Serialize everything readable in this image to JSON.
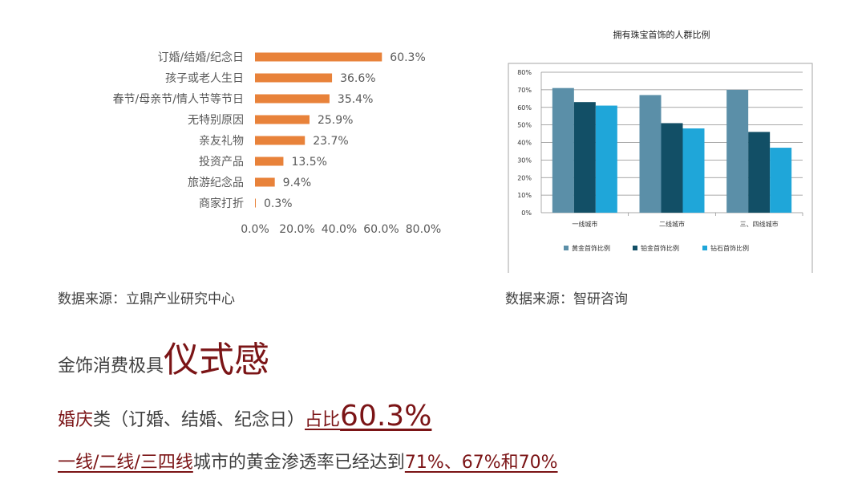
{
  "chart_data": [
    {
      "type": "bar",
      "orientation": "horizontal",
      "categories": [
        "订婚/结婚/纪念日",
        "孩子或老人生日",
        "春节/母亲节/情人节等节日",
        "无特别原因",
        "亲友礼物",
        "投资产品",
        "旅游纪念品",
        "商家打折"
      ],
      "values": [
        60.3,
        36.6,
        35.4,
        25.9,
        23.7,
        13.5,
        9.4,
        0.3
      ],
      "value_labels": [
        "60.3%",
        "36.6%",
        "35.4%",
        "25.9%",
        "23.7%",
        "13.5%",
        "9.4%",
        "0.3%"
      ],
      "xlim": [
        0,
        80
      ],
      "x_ticks": [
        "0.0%",
        "20.0%",
        "40.0%",
        "60.0%",
        "80.0%"
      ],
      "grid": false,
      "color": "#e8823a"
    },
    {
      "type": "bar",
      "title": "拥有珠宝首饰的人群比例",
      "categories": [
        "一线城市",
        "二线城市",
        "三、四线城市"
      ],
      "series": [
        {
          "name": "黄金首饰比例",
          "values": [
            71,
            67,
            70
          ],
          "color": "#5b8fa8"
        },
        {
          "name": "铂金首饰比例",
          "values": [
            63,
            51,
            46
          ],
          "color": "#124f66"
        },
        {
          "name": "钻石首饰比例",
          "values": [
            61,
            48,
            37
          ],
          "color": "#1fa6d9"
        }
      ],
      "ylim": [
        0,
        80
      ],
      "y_ticks": [
        "0%",
        "10%",
        "20%",
        "30%",
        "40%",
        "50%",
        "60%",
        "70%",
        "80%"
      ],
      "grid": true,
      "legend": "bottom"
    }
  ],
  "sources": {
    "left": "数据来源：立鼎产业研究中心",
    "right": "数据来源：智研咨询"
  },
  "headline": {
    "prefix": "金饰消费极具",
    "emphasis": "仪式感"
  },
  "line2": {
    "red": "婚庆",
    "plain": "类（订婚、结婚、纪念日）",
    "underline": "占比",
    "number": "60.3%"
  },
  "line3": {
    "underline_a": "一线/二线/三四线",
    "plain": "城市的黄金渗透率已经达到",
    "underline_b": "71%、67%和70%"
  }
}
